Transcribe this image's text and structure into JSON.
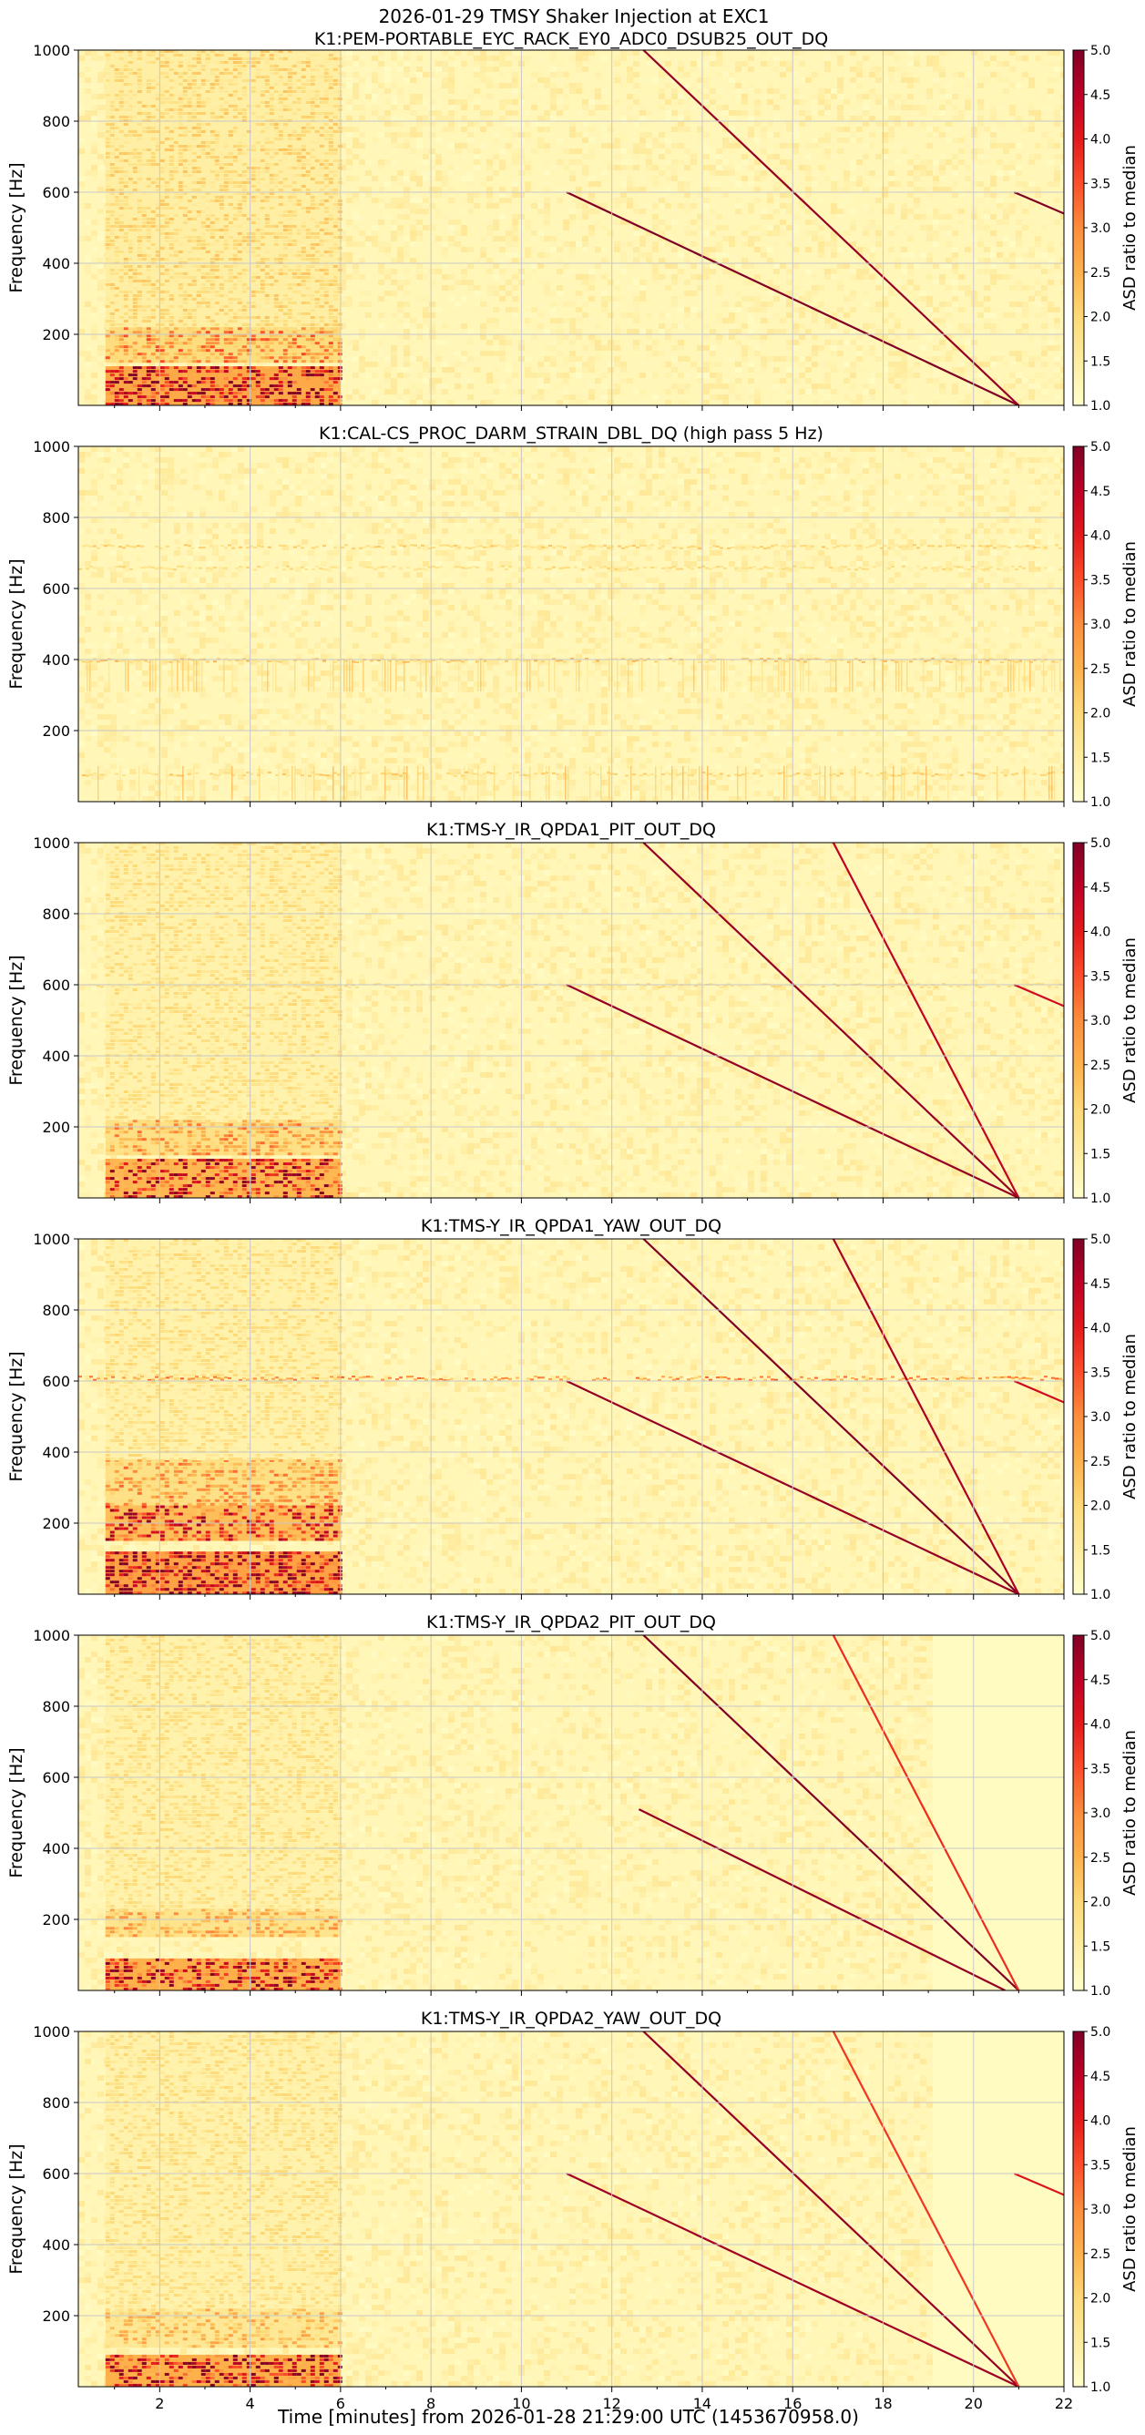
{
  "figure": {
    "suptitle_line1": "2026-01-29 TMSY Shaker Injection at EXC1",
    "xlabel": "Time [minutes] from 2026-01-28 21:29:00 UTC (1453670958.0)"
  },
  "colors": {
    "cmap": [
      "#ffffcc",
      "#ffeda0",
      "#fed976",
      "#feb24c",
      "#fd8d3c",
      "#fc4e2a",
      "#e31a1c",
      "#bd0026",
      "#800026"
    ],
    "background": "#ffffcc",
    "grid": "#c8c8c8",
    "axis": "#000000"
  },
  "chart_data": [
    {
      "type": "heatmap",
      "title": "K1:PEM-PORTABLE_EYC_RACK_EY0_ADC0_DSUB25_OUT_DQ",
      "ylabel": "Frequency [Hz]",
      "xlim": [
        0.2,
        22
      ],
      "ylim": [
        0,
        1000
      ],
      "xticks": [
        2,
        4,
        6,
        8,
        10,
        12,
        14,
        16,
        18,
        20,
        22
      ],
      "yticks": [
        200,
        400,
        600,
        800,
        1000
      ],
      "show_xticklabels": false,
      "colorbar": {
        "label": "ASD ratio to median",
        "range": [
          1.0,
          5.0
        ],
        "ticks": [
          "1.0",
          "1.5",
          "2.0",
          "2.5",
          "3.0",
          "3.5",
          "4.0",
          "4.5",
          "5.0"
        ]
      },
      "noisy_region": {
        "t_start": 0.8,
        "t_end": 6.0,
        "bands": [
          [
            0,
            110,
            0.9
          ],
          [
            120,
            220,
            0.5
          ],
          [
            220,
            1000,
            0.25
          ]
        ]
      },
      "lines": [
        {
          "t0": 11.0,
          "f0": 600,
          "t1": 21.0,
          "f1": 0,
          "strength": 1.0
        },
        {
          "t0": 12.7,
          "f0": 1000,
          "t1": 21.0,
          "f1": 0,
          "strength": 0.9
        },
        {
          "t0": 20.9,
          "f0": 600,
          "t1": 22.0,
          "f1": 540,
          "strength": 1.0
        }
      ],
      "hlines": [],
      "grid": true
    },
    {
      "type": "heatmap",
      "title": "K1:CAL-CS_PROC_DARM_STRAIN_DBL_DQ (high pass 5 Hz)",
      "ylabel": "Frequency [Hz]",
      "xlim": [
        0.2,
        22
      ],
      "ylim": [
        0,
        1000
      ],
      "xticks": [
        2,
        4,
        6,
        8,
        10,
        12,
        14,
        16,
        18,
        20,
        22
      ],
      "yticks": [
        200,
        400,
        600,
        800,
        1000
      ],
      "show_xticklabels": false,
      "colorbar": {
        "label": "ASD ratio to median",
        "range": [
          1.0,
          5.0
        ],
        "ticks": [
          "1.0",
          "1.5",
          "2.0",
          "2.5",
          "3.0",
          "3.5",
          "4.0",
          "4.5",
          "5.0"
        ]
      },
      "noisy_region": null,
      "lines": [],
      "hlines": [
        {
          "f": 400,
          "strength": 0.35
        },
        {
          "f": 720,
          "strength": 0.3
        },
        {
          "f": 660,
          "strength": 0.25
        },
        {
          "f": 80,
          "strength": 0.3
        }
      ],
      "grid": true
    },
    {
      "type": "heatmap",
      "title": "K1:TMS-Y_IR_QPDA1_PIT_OUT_DQ",
      "ylabel": "Frequency [Hz]",
      "xlim": [
        0.2,
        22
      ],
      "ylim": [
        0,
        1000
      ],
      "xticks": [
        2,
        4,
        6,
        8,
        10,
        12,
        14,
        16,
        18,
        20,
        22
      ],
      "yticks": [
        200,
        400,
        600,
        800,
        1000
      ],
      "show_xticklabels": false,
      "colorbar": {
        "label": "ASD ratio to median",
        "range": [
          1.0,
          5.0
        ],
        "ticks": [
          "1.0",
          "1.5",
          "2.0",
          "2.5",
          "3.0",
          "3.5",
          "4.0",
          "4.5",
          "5.0"
        ]
      },
      "noisy_region": {
        "t_start": 0.8,
        "t_end": 6.0,
        "bands": [
          [
            0,
            110,
            0.8
          ],
          [
            120,
            220,
            0.45
          ],
          [
            220,
            1000,
            0.2
          ]
        ]
      },
      "lines": [
        {
          "t0": 11.0,
          "f0": 600,
          "t1": 21.0,
          "f1": 0,
          "strength": 0.9
        },
        {
          "t0": 12.7,
          "f0": 1000,
          "t1": 21.0,
          "f1": 0,
          "strength": 0.9
        },
        {
          "t0": 16.9,
          "f0": 1000,
          "t1": 21.0,
          "f1": 0,
          "strength": 0.7
        },
        {
          "t0": 20.9,
          "f0": 600,
          "t1": 22.0,
          "f1": 540,
          "strength": 0.6
        }
      ],
      "hlines": [
        {
          "f": 600,
          "strength": 0.25
        }
      ],
      "grid": true
    },
    {
      "type": "heatmap",
      "title": "K1:TMS-Y_IR_QPDA1_YAW_OUT_DQ",
      "ylabel": "Frequency [Hz]",
      "xlim": [
        0.2,
        22
      ],
      "ylim": [
        0,
        1000
      ],
      "xticks": [
        2,
        4,
        6,
        8,
        10,
        12,
        14,
        16,
        18,
        20,
        22
      ],
      "yticks": [
        200,
        400,
        600,
        800,
        1000
      ],
      "show_xticklabels": false,
      "colorbar": {
        "label": "ASD ratio to median",
        "range": [
          1.0,
          5.0
        ],
        "ticks": [
          "1.0",
          "1.5",
          "2.0",
          "2.5",
          "3.0",
          "3.5",
          "4.0",
          "4.5",
          "5.0"
        ]
      },
      "noisy_region": {
        "t_start": 0.8,
        "t_end": 6.0,
        "bands": [
          [
            0,
            120,
            0.95
          ],
          [
            150,
            250,
            0.75
          ],
          [
            250,
            380,
            0.45
          ],
          [
            380,
            1000,
            0.2
          ]
        ]
      },
      "lines": [
        {
          "t0": 11.0,
          "f0": 600,
          "t1": 21.0,
          "f1": 0,
          "strength": 0.9
        },
        {
          "t0": 12.7,
          "f0": 1000,
          "t1": 21.0,
          "f1": 0,
          "strength": 1.0
        },
        {
          "t0": 16.9,
          "f0": 1000,
          "t1": 21.0,
          "f1": 0,
          "strength": 0.8
        },
        {
          "t0": 20.9,
          "f0": 600,
          "t1": 22.0,
          "f1": 540,
          "strength": 0.6
        }
      ],
      "hlines": [
        {
          "f": 610,
          "strength": 0.55
        }
      ],
      "grid": true
    },
    {
      "type": "heatmap",
      "title": "K1:TMS-Y_IR_QPDA2_PIT_OUT_DQ",
      "ylabel": "Frequency [Hz]",
      "xlim": [
        0.2,
        22
      ],
      "ylim": [
        0,
        1000
      ],
      "xticks": [
        2,
        4,
        6,
        8,
        10,
        12,
        14,
        16,
        18,
        20,
        22
      ],
      "yticks": [
        200,
        400,
        600,
        800,
        1000
      ],
      "show_xticklabels": false,
      "colorbar": {
        "label": "ASD ratio to median",
        "range": [
          1.0,
          5.0
        ],
        "ticks": [
          "1.0",
          "1.5",
          "2.0",
          "2.5",
          "3.0",
          "3.5",
          "4.0",
          "4.5",
          "5.0"
        ]
      },
      "noisy_region": {
        "t_start": 0.8,
        "t_end": 6.0,
        "bands": [
          [
            0,
            90,
            0.85
          ],
          [
            150,
            230,
            0.4
          ],
          [
            230,
            1000,
            0.2
          ]
        ]
      },
      "quiet_region": {
        "t_start": 19.1,
        "t_end": 22.0
      },
      "lines": [
        {
          "t0": 12.6,
          "f0": 510,
          "t1": 20.7,
          "f1": 0,
          "strength": 0.9
        },
        {
          "t0": 12.7,
          "f0": 1000,
          "t1": 21.0,
          "f1": 0,
          "strength": 1.0
        },
        {
          "t0": 16.9,
          "f0": 1000,
          "t1": 21.0,
          "f1": 0,
          "strength": 0.35
        }
      ],
      "hlines": [],
      "grid": true
    },
    {
      "type": "heatmap",
      "title": "K1:TMS-Y_IR_QPDA2_YAW_OUT_DQ",
      "ylabel": "Frequency [Hz]",
      "xlim": [
        0.2,
        22
      ],
      "ylim": [
        0,
        1000
      ],
      "xticks": [
        2,
        4,
        6,
        8,
        10,
        12,
        14,
        16,
        18,
        20,
        22
      ],
      "yticks": [
        200,
        400,
        600,
        800,
        1000
      ],
      "show_xticklabels": true,
      "colorbar": {
        "label": "ASD ratio to median",
        "range": [
          1.0,
          5.0
        ],
        "ticks": [
          "1.0",
          "1.5",
          "2.0",
          "2.5",
          "3.0",
          "3.5",
          "4.0",
          "4.5",
          "5.0"
        ]
      },
      "noisy_region": {
        "t_start": 0.8,
        "t_end": 6.0,
        "bands": [
          [
            0,
            90,
            0.85
          ],
          [
            110,
            220,
            0.35
          ],
          [
            220,
            1000,
            0.2
          ]
        ]
      },
      "quiet_region": {
        "t_start": 19.1,
        "t_end": 22.0
      },
      "lines": [
        {
          "t0": 11.0,
          "f0": 600,
          "t1": 21.0,
          "f1": 0,
          "strength": 0.85
        },
        {
          "t0": 12.7,
          "f0": 1000,
          "t1": 21.0,
          "f1": 0,
          "strength": 0.9
        },
        {
          "t0": 16.9,
          "f0": 1000,
          "t1": 21.0,
          "f1": 0,
          "strength": 0.3
        },
        {
          "t0": 20.9,
          "f0": 600,
          "t1": 22.0,
          "f1": 540,
          "strength": 0.5
        }
      ],
      "hlines": [],
      "grid": true
    }
  ]
}
